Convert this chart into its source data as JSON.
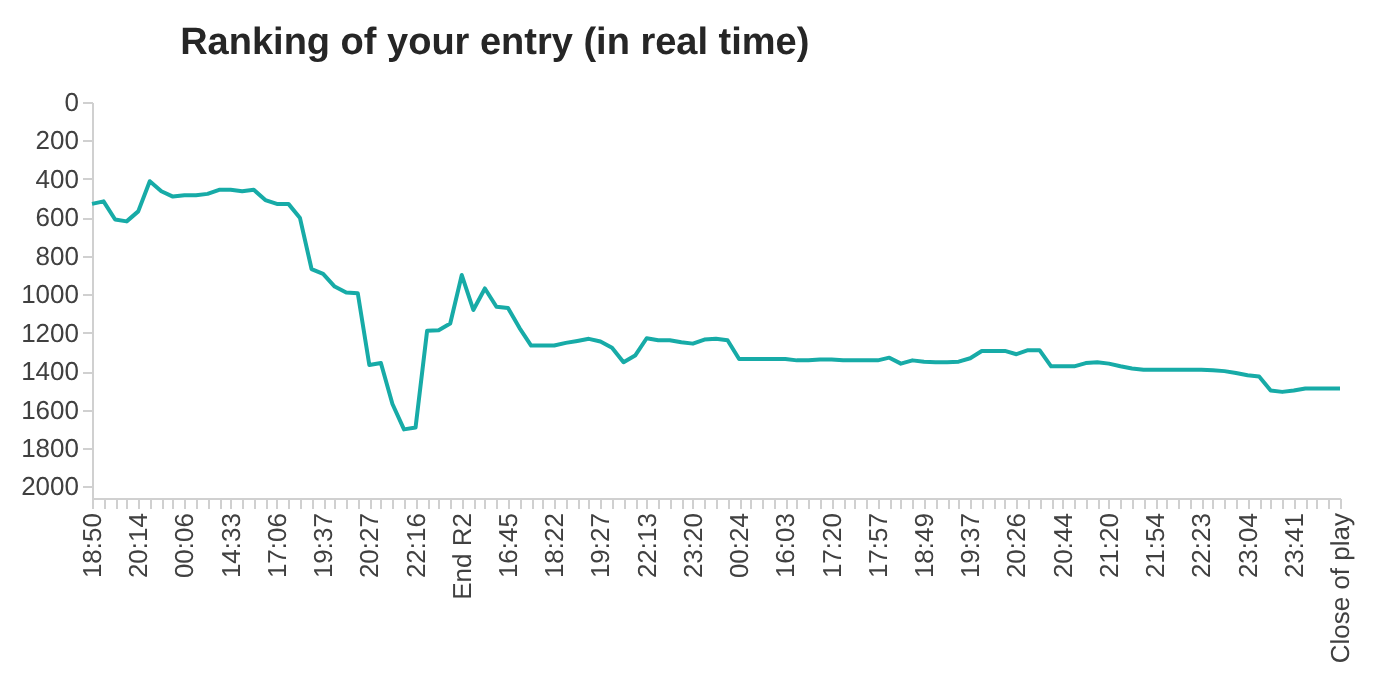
{
  "chart_data": {
    "type": "line",
    "title": "Ranking of your entry (in real time)",
    "categories": [
      "18:50",
      null,
      null,
      null,
      "20:14",
      null,
      null,
      null,
      "00:06",
      null,
      null,
      null,
      "14:33",
      null,
      null,
      null,
      "17:06",
      null,
      null,
      null,
      "19:37",
      null,
      null,
      null,
      "20:27",
      null,
      null,
      null,
      "22:16",
      null,
      null,
      null,
      "End R2",
      null,
      null,
      null,
      "16:45",
      null,
      null,
      null,
      "18:22",
      null,
      null,
      null,
      "19:27",
      null,
      null,
      null,
      "22:13",
      null,
      null,
      null,
      "23:20",
      null,
      null,
      null,
      "00:24",
      null,
      null,
      null,
      "16:03",
      null,
      null,
      null,
      "17:20",
      null,
      null,
      null,
      "17:57",
      null,
      null,
      null,
      "18:49",
      null,
      null,
      null,
      "19:37",
      null,
      null,
      null,
      "20:26",
      null,
      null,
      null,
      "20:44",
      null,
      null,
      null,
      "21:20",
      null,
      null,
      null,
      "21:54",
      null,
      null,
      null,
      "22:23",
      null,
      null,
      null,
      "23:04",
      null,
      null,
      null,
      "23:41",
      null,
      null,
      null,
      "Close of play"
    ],
    "series": [
      {
        "color": "#17aba7",
        "values": [
          530,
          517,
          611,
          621,
          569,
          412,
          464,
          492,
          485,
          485,
          478,
          457,
          457,
          464,
          457,
          510,
          530,
          530,
          604,
          869,
          894,
          960,
          991,
          995,
          1368,
          1358,
          1571,
          1703,
          1693,
          1190,
          1187,
          1152,
          900,
          1082,
          970,
          1065,
          1072,
          1176,
          1267,
          1267,
          1267,
          1253,
          1243,
          1232,
          1246,
          1278,
          1354,
          1319,
          1229,
          1239,
          1239,
          1250,
          1257,
          1236,
          1232,
          1239,
          1337,
          1337,
          1337,
          1337,
          1337,
          1344,
          1344,
          1340,
          1340,
          1344,
          1344,
          1344,
          1344,
          1330,
          1361,
          1344,
          1351,
          1354,
          1354,
          1351,
          1333,
          1295,
          1295,
          1295,
          1312,
          1291,
          1291,
          1375,
          1375,
          1375,
          1358,
          1354,
          1361,
          1375,
          1386,
          1393,
          1393,
          1393,
          1393,
          1393,
          1393,
          1396,
          1400,
          1410,
          1421,
          1428,
          1501,
          1508,
          1501,
          1490,
          1490,
          1490,
          1490
        ]
      }
    ],
    "ylim": [
      2060,
      0
    ],
    "yticks": [
      0,
      200,
      400,
      600,
      800,
      1000,
      1200,
      1400,
      1600,
      1800,
      2000
    ],
    "grid": false,
    "line_style": "solid",
    "marker": "none"
  }
}
